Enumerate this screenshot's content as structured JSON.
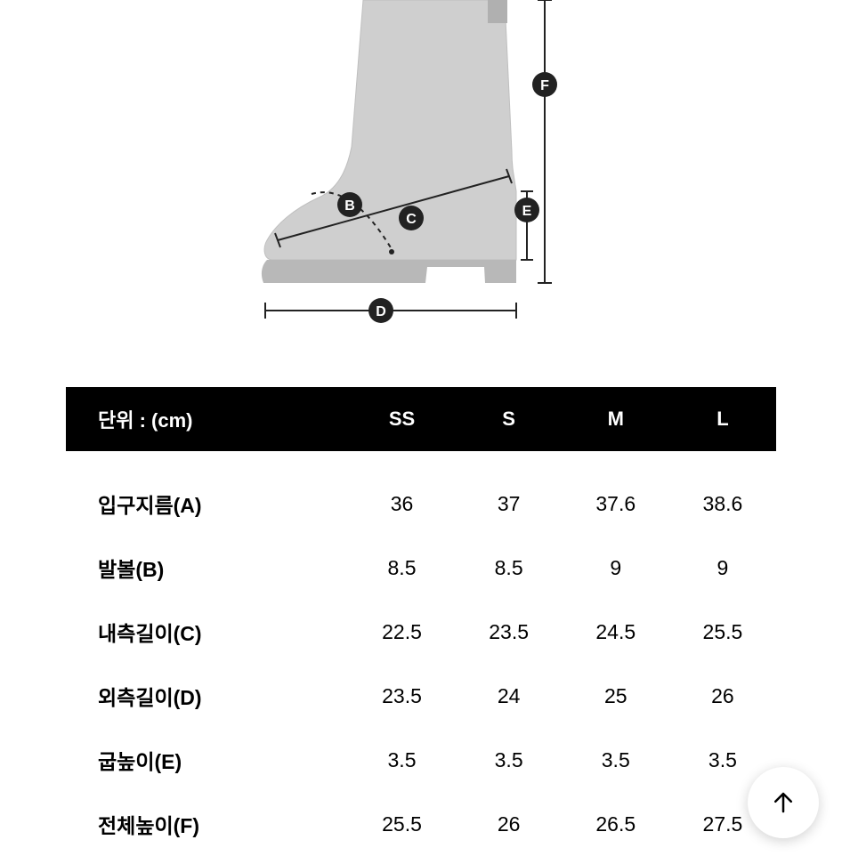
{
  "diagram": {
    "labels": {
      "B": "B",
      "C": "C",
      "D": "D",
      "E": "E",
      "F": "F"
    },
    "colors": {
      "boot_fill": "#cfcfcf",
      "boot_stroke": "#bfbfbf",
      "diagram_line": "#222222",
      "label_circle": "#222222",
      "label_text": "#ffffff",
      "background": "#ffffff"
    }
  },
  "table": {
    "unit_label": "단위 : (cm)",
    "columns": [
      "SS",
      "S",
      "M",
      "L"
    ],
    "rows": [
      {
        "label": "입구지름(A)",
        "values": [
          "36",
          "37",
          "37.6",
          "38.6"
        ]
      },
      {
        "label": "발볼(B)",
        "values": [
          "8.5",
          "8.5",
          "9",
          "9"
        ]
      },
      {
        "label": "내측길이(C)",
        "values": [
          "22.5",
          "23.5",
          "24.5",
          "25.5"
        ]
      },
      {
        "label": "외측길이(D)",
        "values": [
          "23.5",
          "24",
          "25",
          "26"
        ]
      },
      {
        "label": "굽높이(E)",
        "values": [
          "3.5",
          "3.5",
          "3.5",
          "3.5"
        ]
      },
      {
        "label": "전체높이(F)",
        "values": [
          "25.5",
          "26",
          "26.5",
          "27.5"
        ]
      }
    ],
    "header_bg": "#000000",
    "header_text_color": "#ffffff",
    "body_text_color": "#000000",
    "font_size_header": 22,
    "font_size_body": 23
  },
  "scroll_button": {
    "name": "scroll-to-top",
    "bg": "#ffffff"
  }
}
